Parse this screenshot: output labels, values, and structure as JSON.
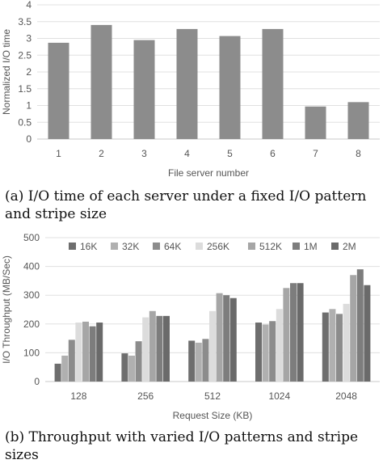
{
  "chart_data": [
    {
      "type": "bar",
      "title": "",
      "xlabel": "File server number",
      "ylabel": "Normalized I/O time",
      "categories": [
        "1",
        "2",
        "3",
        "4",
        "5",
        "6",
        "7",
        "8"
      ],
      "values": [
        2.87,
        3.4,
        2.95,
        3.28,
        3.07,
        3.28,
        0.97,
        1.1
      ],
      "yticks": [
        "0",
        "0.5",
        "1",
        "1.5",
        "2",
        "2.5",
        "3",
        "3.5",
        "4"
      ],
      "ylim": [
        0,
        4
      ],
      "grid": true,
      "bar_color": "#8c8c8c",
      "caption": "(a) I/O time of each server under a fixed I/O pattern and stripe size"
    },
    {
      "type": "bar",
      "title": "",
      "xlabel": "Request Size (KB)",
      "ylabel": "I/O Throughput (MB/Sec)",
      "categories": [
        "128",
        "256",
        "512",
        "1024",
        "2048"
      ],
      "series": [
        {
          "name": "16K",
          "color": "#6e6e6e",
          "values": [
            62,
            98,
            142,
            205,
            240
          ]
        },
        {
          "name": "32K",
          "color": "#b0b0b0",
          "values": [
            90,
            90,
            135,
            198,
            252
          ]
        },
        {
          "name": "64K",
          "color": "#8c8c8c",
          "values": [
            145,
            140,
            148,
            210,
            235
          ]
        },
        {
          "name": "256K",
          "color": "#dcdcdc",
          "values": [
            205,
            223,
            245,
            252,
            270
          ]
        },
        {
          "name": "512K",
          "color": "#a6a6a6",
          "values": [
            208,
            245,
            307,
            325,
            370
          ]
        },
        {
          "name": "1M",
          "color": "#7d7d7d",
          "values": [
            192,
            228,
            300,
            342,
            390
          ]
        },
        {
          "name": "2M",
          "color": "#6a6a6a",
          "values": [
            205,
            228,
            290,
            342,
            335
          ]
        }
      ],
      "yticks": [
        "0",
        "100",
        "200",
        "300",
        "400",
        "500"
      ],
      "ylim": [
        0,
        500
      ],
      "grid": true,
      "legend": "top",
      "caption": "(b) Throughput with varied I/O patterns and stripe sizes"
    }
  ]
}
